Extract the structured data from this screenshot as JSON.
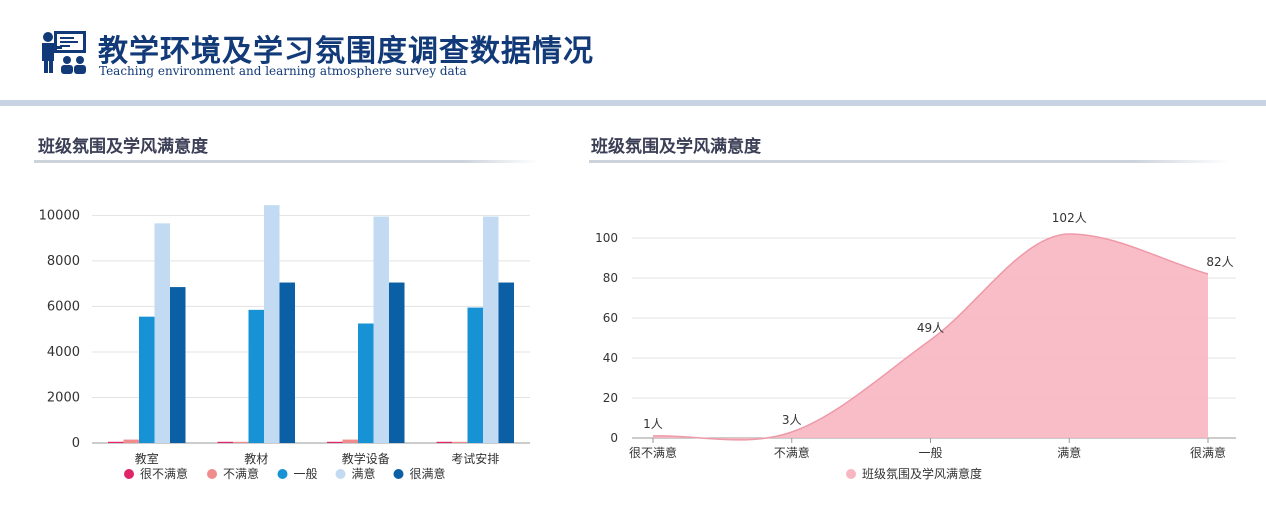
{
  "header": {
    "title": "教学环境及学习氛围度调查数据情况",
    "subtitle": "Teaching environment and learning atmosphere survey data",
    "icon": "teacher-classroom-icon",
    "accent_color": "#123a78"
  },
  "left_panel": {
    "title": "班级氛围及学风满意度"
  },
  "right_panel": {
    "title": "班级氛围及学风满意度"
  },
  "chart_data": [
    {
      "type": "bar",
      "categories": [
        "教室",
        "教材",
        "教学设备",
        "考试安排"
      ],
      "series": [
        {
          "name": "很不满意",
          "color": "#e0246a",
          "values": [
            20,
            10,
            20,
            10
          ]
        },
        {
          "name": "不满意",
          "color": "#f08c8c",
          "values": [
            150,
            50,
            150,
            50
          ]
        },
        {
          "name": "一般",
          "color": "#1792d4",
          "values": [
            5550,
            5850,
            5250,
            5950
          ]
        },
        {
          "name": "满意",
          "color": "#c2dbf2",
          "values": [
            9650,
            10450,
            9950,
            9950
          ]
        },
        {
          "name": "很满意",
          "color": "#0b5fa5",
          "values": [
            6850,
            7050,
            7050,
            7050
          ]
        }
      ],
      "yticks": [
        0,
        2000,
        4000,
        6000,
        8000,
        10000
      ],
      "ylim": [
        0,
        10500
      ],
      "grid": true,
      "legend": "bottom"
    },
    {
      "type": "area",
      "categories": [
        "很不满意",
        "不满意",
        "一般",
        "满意",
        "很满意"
      ],
      "series": [
        {
          "name": "班级氛围及学风满意度",
          "color": "#f7b6c0",
          "values": [
            1,
            3,
            49,
            102,
            82
          ],
          "labels": [
            "1人",
            "3人",
            "49人",
            "102人",
            "82人"
          ]
        }
      ],
      "yticks": [
        0,
        20,
        40,
        60,
        80,
        100
      ],
      "ylim": [
        0,
        100
      ],
      "grid": true,
      "smooth": true,
      "legend": "bottom"
    }
  ]
}
